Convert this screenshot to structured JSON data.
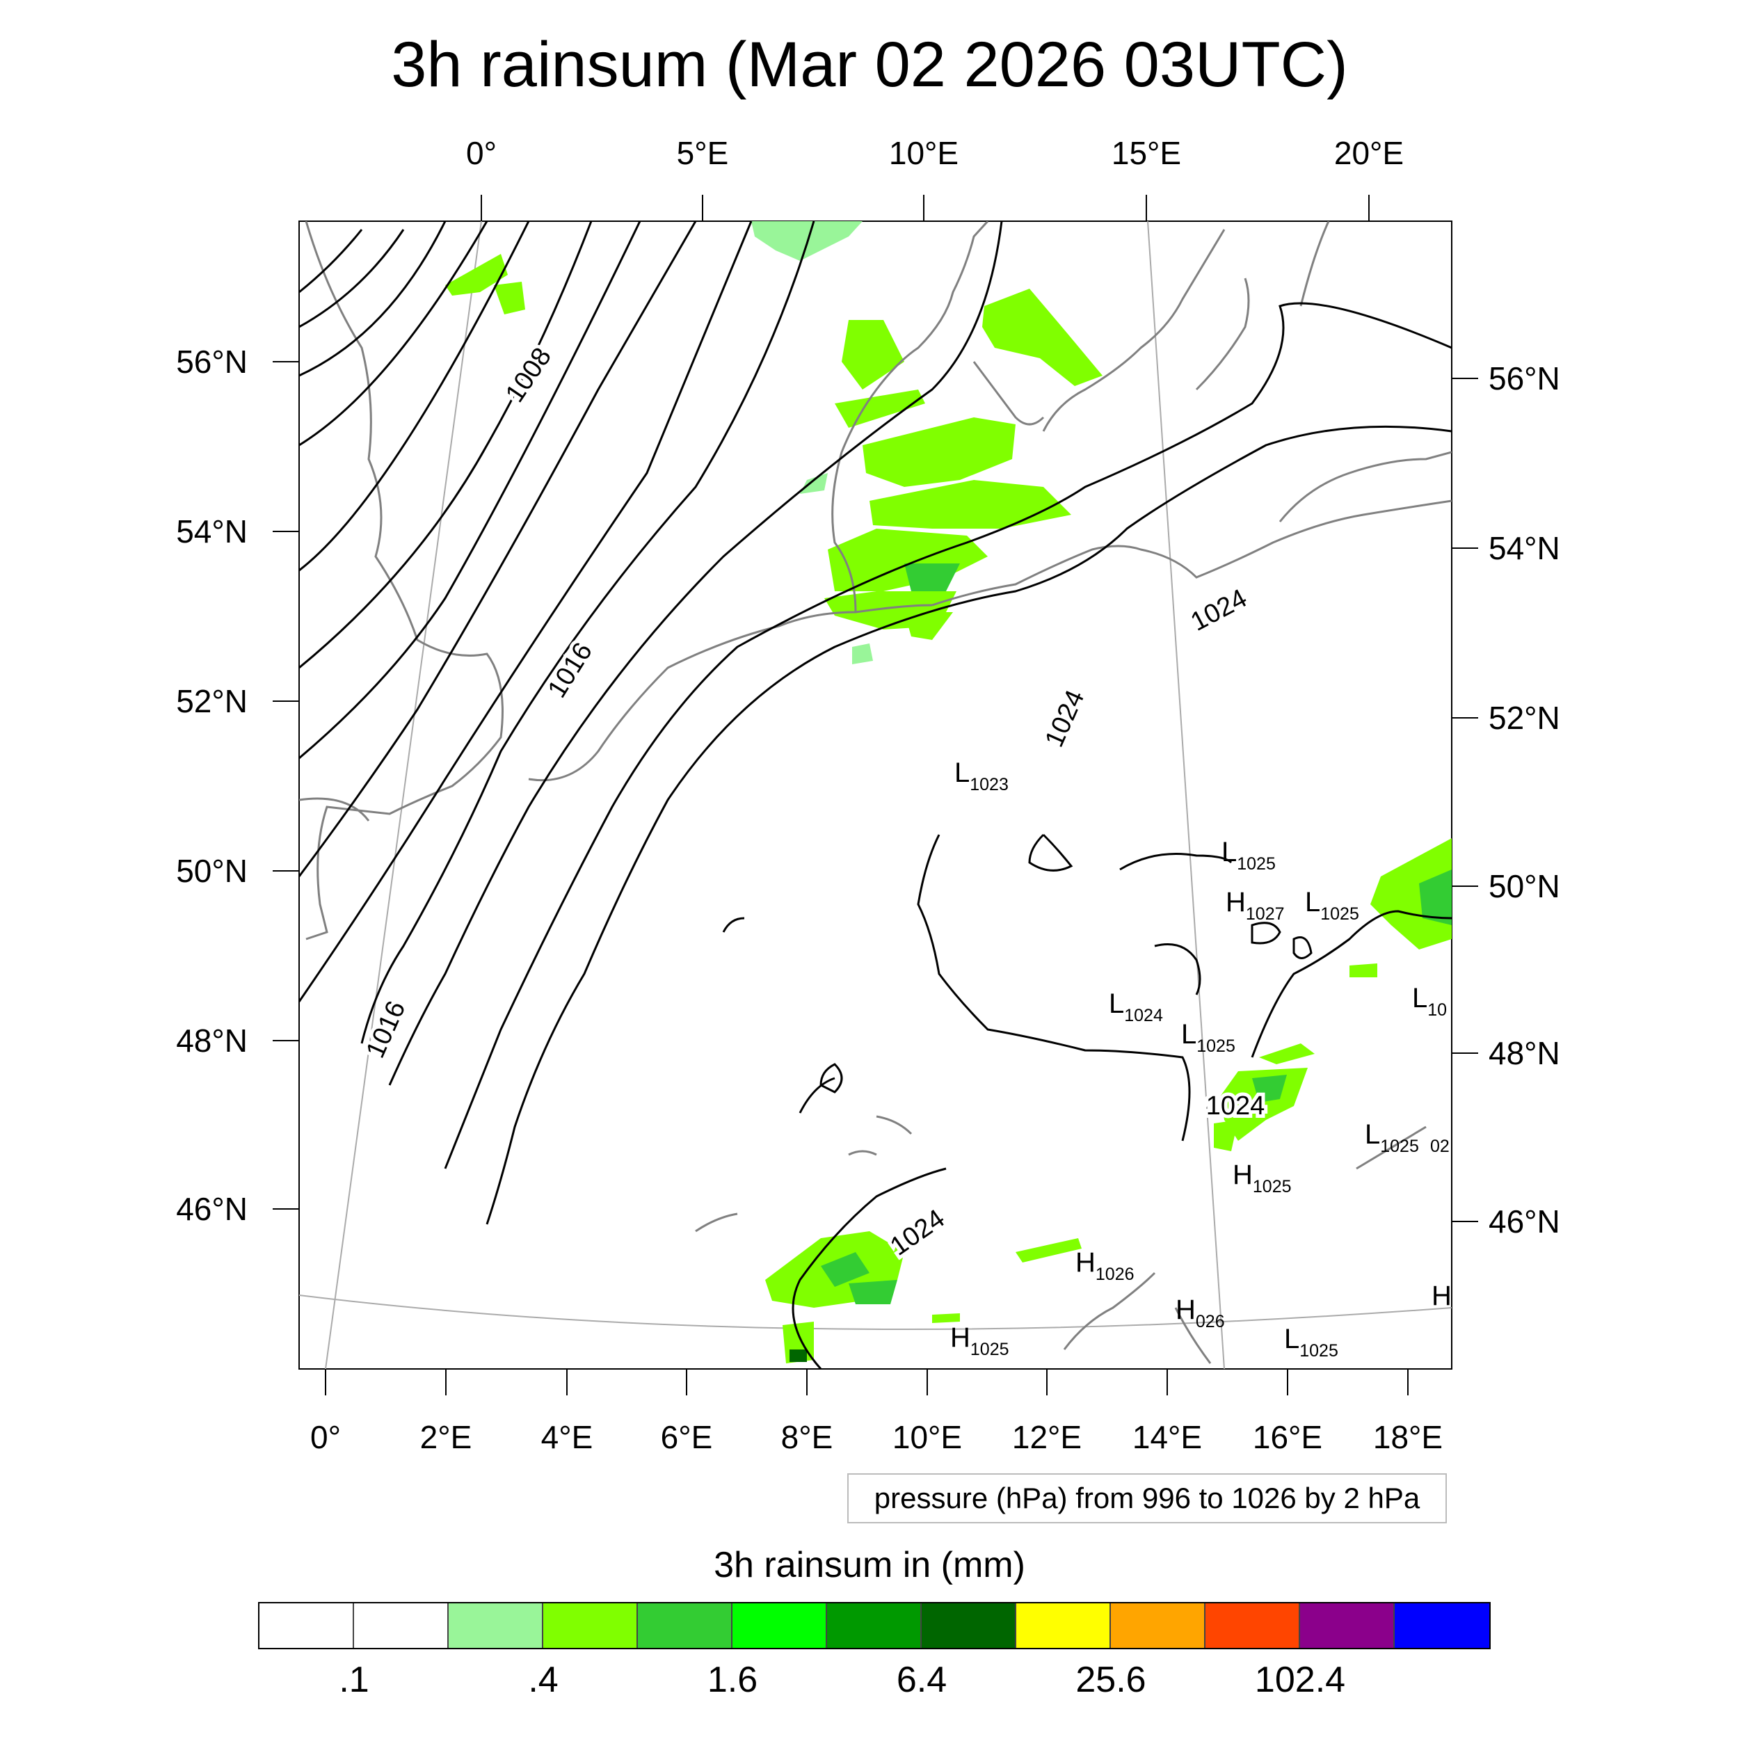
{
  "title": "3h rainsum (Mar 02 2026 03UTC)",
  "map": {
    "top_lon_labels": [
      "0°",
      "5°E",
      "10°E",
      "15°E",
      "20°E"
    ],
    "bottom_lon_labels": [
      "0°",
      "2°E",
      "4°E",
      "6°E",
      "8°E",
      "10°E",
      "12°E",
      "14°E",
      "16°E",
      "18°E"
    ],
    "left_lat_labels": [
      "56°N",
      "54°N",
      "52°N",
      "50°N",
      "48°N",
      "46°N"
    ],
    "right_lat_labels": [
      "56°N",
      "54°N",
      "52°N",
      "50°N",
      "48°N",
      "46°N"
    ],
    "contour_labels": [
      "1008",
      "1016",
      "1016",
      "1024",
      "1024",
      "1024",
      "1024"
    ],
    "pressure_centers": [
      {
        "type": "L",
        "value": "1023"
      },
      {
        "type": "L",
        "value": "1025"
      },
      {
        "type": "H",
        "value": "1027"
      },
      {
        "type": "L",
        "value": "1025"
      },
      {
        "type": "L",
        "value": "10"
      },
      {
        "type": "L",
        "value": "1024"
      },
      {
        "type": "L",
        "value": "1025"
      },
      {
        "type": "L",
        "value": "1025"
      },
      {
        "type": "",
        "value": "02"
      },
      {
        "type": "H",
        "value": "1025"
      },
      {
        "type": "H",
        "value": "1026"
      },
      {
        "type": "H",
        "value": "1025"
      },
      {
        "type": "H",
        "value": "026"
      },
      {
        "type": "L",
        "value": "1025"
      },
      {
        "type": "H",
        "value": ""
      }
    ]
  },
  "contour_note": "pressure (hPa) from 996 to 1026 by 2 hPa",
  "colorbar": {
    "title": "3h rainsum in (mm)",
    "colors": [
      "#ffffff",
      "#ffffff",
      "#99f599",
      "#80ff00",
      "#33cc33",
      "#00ff00",
      "#009900",
      "#006600",
      "#ffff00",
      "#ffa500",
      "#ff4500",
      "#8b008b",
      "#0000ff"
    ],
    "labels": [
      ".1",
      ".4",
      "1.6",
      "6.4",
      "25.6",
      "102.4"
    ]
  }
}
